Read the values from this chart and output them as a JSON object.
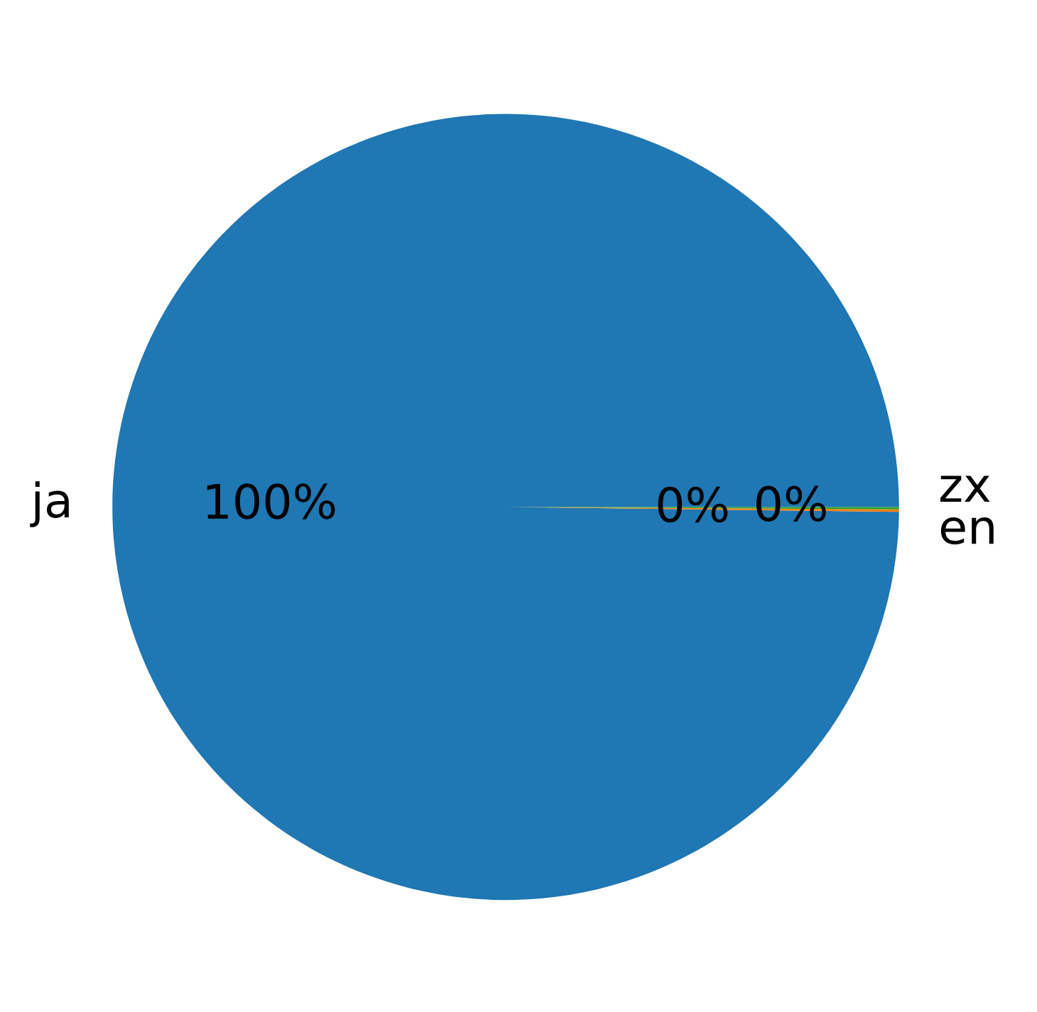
{
  "chart_data": {
    "type": "pie",
    "categories": [
      "ja",
      "en",
      "zx"
    ],
    "values": [
      99.8,
      0.1,
      0.1
    ],
    "colors": [
      "#1f77b4",
      "#ff7f0e",
      "#2ca02c"
    ],
    "value_labels": [
      "100%",
      "0%",
      "0%"
    ]
  }
}
